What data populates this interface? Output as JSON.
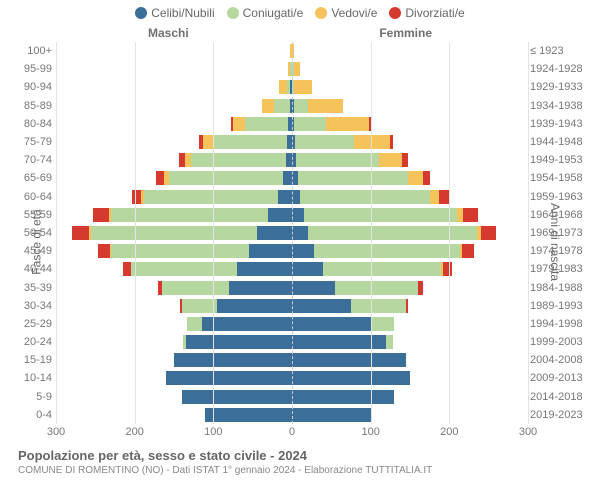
{
  "title": "Popolazione per età, sesso e stato civile - 2024",
  "subtitle": "COMUNE DI ROMENTINO (NO) - Dati ISTAT 1° gennaio 2024 - Elaborazione TUTTITALIA.IT",
  "legend": [
    {
      "label": "Celibi/Nubili",
      "color": "#3b6e98"
    },
    {
      "label": "Coniugati/e",
      "color": "#b6d7a0"
    },
    {
      "label": "Vedovi/e",
      "color": "#f6c35a"
    },
    {
      "label": "Divorziati/e",
      "color": "#d63a2e"
    }
  ],
  "header_male": "Maschi",
  "header_female": "Femmine",
  "yaxis_left_title": "Fasce di età",
  "yaxis_right_title": "Anni di nascita",
  "xmax": 300,
  "xticks": [
    300,
    200,
    100,
    0,
    100,
    200,
    300
  ],
  "xtick_label_zero": "0",
  "grid_color": "#e3e3e3",
  "center_line_color": "#cccccc",
  "colors": {
    "celibi": "#3b6e98",
    "coniugati": "#b6d7a0",
    "vedovi": "#f6c35a",
    "divorziati": "#d63a2e"
  },
  "rows": [
    {
      "age": "100+",
      "birth": "≤ 1923",
      "m": {
        "c": 0,
        "co": 0,
        "v": 2,
        "d": 0
      },
      "f": {
        "c": 0,
        "co": 0,
        "v": 2,
        "d": 0
      }
    },
    {
      "age": "95-99",
      "birth": "1924-1928",
      "m": {
        "c": 0,
        "co": 2,
        "v": 3,
        "d": 0
      },
      "f": {
        "c": 0,
        "co": 2,
        "v": 8,
        "d": 0
      }
    },
    {
      "age": "90-94",
      "birth": "1929-1933",
      "m": {
        "c": 2,
        "co": 5,
        "v": 10,
        "d": 0
      },
      "f": {
        "c": 0,
        "co": 3,
        "v": 22,
        "d": 0
      }
    },
    {
      "age": "85-89",
      "birth": "1934-1938",
      "m": {
        "c": 3,
        "co": 20,
        "v": 15,
        "d": 0
      },
      "f": {
        "c": 2,
        "co": 18,
        "v": 45,
        "d": 0
      }
    },
    {
      "age": "80-84",
      "birth": "1939-1943",
      "m": {
        "c": 5,
        "co": 55,
        "v": 15,
        "d": 2
      },
      "f": {
        "c": 3,
        "co": 40,
        "v": 55,
        "d": 3
      }
    },
    {
      "age": "75-79",
      "birth": "1944-1948",
      "m": {
        "c": 6,
        "co": 95,
        "v": 12,
        "d": 5
      },
      "f": {
        "c": 4,
        "co": 75,
        "v": 45,
        "d": 4
      }
    },
    {
      "age": "70-74",
      "birth": "1949-1953",
      "m": {
        "c": 8,
        "co": 120,
        "v": 8,
        "d": 8
      },
      "f": {
        "c": 5,
        "co": 105,
        "v": 30,
        "d": 8
      }
    },
    {
      "age": "65-69",
      "birth": "1954-1958",
      "m": {
        "c": 12,
        "co": 145,
        "v": 6,
        "d": 10
      },
      "f": {
        "c": 8,
        "co": 140,
        "v": 18,
        "d": 10
      }
    },
    {
      "age": "60-64",
      "birth": "1959-1963",
      "m": {
        "c": 18,
        "co": 170,
        "v": 4,
        "d": 12
      },
      "f": {
        "c": 10,
        "co": 165,
        "v": 12,
        "d": 12
      }
    },
    {
      "age": "55-59",
      "birth": "1964-1968",
      "m": {
        "c": 30,
        "co": 200,
        "v": 3,
        "d": 20
      },
      "f": {
        "c": 15,
        "co": 195,
        "v": 8,
        "d": 18
      }
    },
    {
      "age": "50-54",
      "birth": "1969-1973",
      "m": {
        "c": 45,
        "co": 210,
        "v": 3,
        "d": 22
      },
      "f": {
        "c": 20,
        "co": 215,
        "v": 5,
        "d": 20
      }
    },
    {
      "age": "45-49",
      "birth": "1974-1978",
      "m": {
        "c": 55,
        "co": 175,
        "v": 2,
        "d": 15
      },
      "f": {
        "c": 28,
        "co": 185,
        "v": 3,
        "d": 15
      }
    },
    {
      "age": "40-44",
      "birth": "1979-1983",
      "m": {
        "c": 70,
        "co": 135,
        "v": 0,
        "d": 10
      },
      "f": {
        "c": 40,
        "co": 150,
        "v": 2,
        "d": 12
      }
    },
    {
      "age": "35-39",
      "birth": "1984-1988",
      "m": {
        "c": 80,
        "co": 85,
        "v": 0,
        "d": 5
      },
      "f": {
        "c": 55,
        "co": 105,
        "v": 0,
        "d": 6
      }
    },
    {
      "age": "30-34",
      "birth": "1989-1993",
      "m": {
        "c": 95,
        "co": 45,
        "v": 0,
        "d": 3
      },
      "f": {
        "c": 75,
        "co": 70,
        "v": 0,
        "d": 3
      }
    },
    {
      "age": "25-29",
      "birth": "1994-1998",
      "m": {
        "c": 115,
        "co": 18,
        "v": 0,
        "d": 0
      },
      "f": {
        "c": 100,
        "co": 30,
        "v": 0,
        "d": 0
      }
    },
    {
      "age": "20-24",
      "birth": "1999-2003",
      "m": {
        "c": 135,
        "co": 3,
        "v": 0,
        "d": 0
      },
      "f": {
        "c": 120,
        "co": 8,
        "v": 0,
        "d": 0
      }
    },
    {
      "age": "15-19",
      "birth": "2004-2008",
      "m": {
        "c": 150,
        "co": 0,
        "v": 0,
        "d": 0
      },
      "f": {
        "c": 145,
        "co": 0,
        "v": 0,
        "d": 0
      }
    },
    {
      "age": "10-14",
      "birth": "2009-2013",
      "m": {
        "c": 160,
        "co": 0,
        "v": 0,
        "d": 0
      },
      "f": {
        "c": 150,
        "co": 0,
        "v": 0,
        "d": 0
      }
    },
    {
      "age": "5-9",
      "birth": "2014-2018",
      "m": {
        "c": 140,
        "co": 0,
        "v": 0,
        "d": 0
      },
      "f": {
        "c": 130,
        "co": 0,
        "v": 0,
        "d": 0
      }
    },
    {
      "age": "0-4",
      "birth": "2019-2023",
      "m": {
        "c": 110,
        "co": 0,
        "v": 0,
        "d": 0
      },
      "f": {
        "c": 100,
        "co": 0,
        "v": 0,
        "d": 0
      }
    }
  ]
}
